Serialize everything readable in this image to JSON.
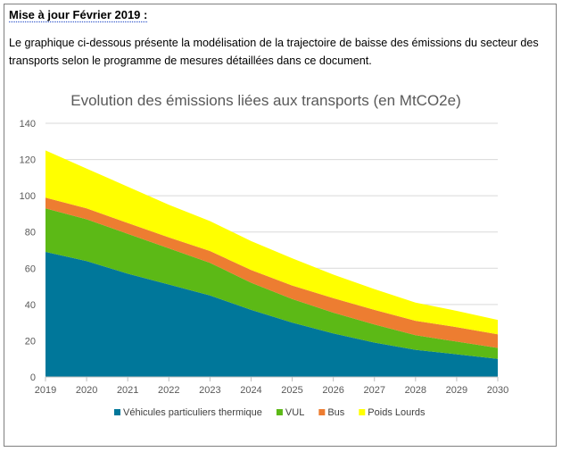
{
  "header": {
    "title": "Mise à jour Février 2019 :",
    "intro": "Le graphique ci-dessous présente la modélisation de la trajectoire de baisse des émissions du secteur des transports selon le programme de mesures détaillées dans ce document."
  },
  "chart_data": {
    "type": "area",
    "stacked": true,
    "title": "Evolution des émissions liées aux transports (en MtCO2e)",
    "xlabel": "",
    "ylabel": "",
    "x": [
      "2019",
      "2020",
      "2021",
      "2022",
      "2023",
      "2024",
      "2025",
      "2026",
      "2027",
      "2028",
      "2029",
      "2030"
    ],
    "ylim": [
      0,
      140
    ],
    "yticks": [
      0,
      20,
      40,
      60,
      80,
      100,
      120,
      140
    ],
    "grid": true,
    "legend_position": "bottom",
    "series": [
      {
        "name": "Véhicules particuliers thermique",
        "color": "#00779a",
        "values": [
          69,
          64,
          57,
          51,
          45,
          37,
          30,
          24,
          19,
          15,
          12.5,
          10
        ]
      },
      {
        "name": "VUL",
        "color": "#5cb916",
        "values": [
          24,
          23,
          22,
          20,
          18,
          15,
          13,
          11.5,
          10,
          8,
          7,
          6
        ]
      },
      {
        "name": "Bus",
        "color": "#ed7d31",
        "values": [
          6,
          6,
          6,
          6,
          6.5,
          7,
          7.5,
          8,
          8,
          8,
          8,
          7.5
        ]
      },
      {
        "name": "Poids Lourds",
        "color": "#ffff00",
        "values": [
          26,
          22,
          20,
          18,
          16.5,
          16,
          15,
          13,
          11.5,
          10,
          9,
          8
        ]
      }
    ]
  }
}
